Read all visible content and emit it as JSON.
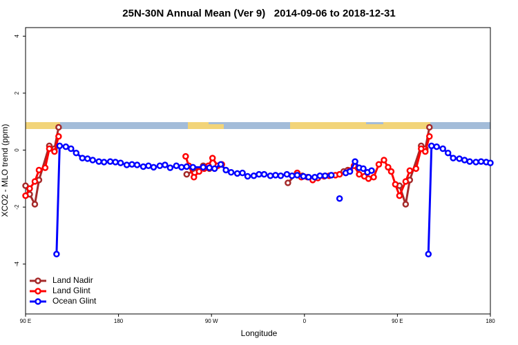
{
  "chart_data": {
    "type": "line",
    "title": "25N-30N Annual Mean (Ver 9)   2014-09-06 to 2018-12-31",
    "x_label": "Longitude",
    "y_label": "XCO2 - MLO trend (ppm)",
    "xlim": [
      90,
      540
    ],
    "xticks": [
      {
        "value": 90,
        "label": "90 E"
      },
      {
        "value": 180,
        "label": "180"
      },
      {
        "value": 270,
        "label": "90 W"
      },
      {
        "value": 360,
        "label": "0"
      },
      {
        "value": 450,
        "label": "90 E"
      },
      {
        "value": 540,
        "label": "180"
      }
    ],
    "ylim": [
      -5.75,
      4.3
    ],
    "yticks": [
      -4,
      -2,
      0,
      2,
      4
    ],
    "legend": "bottomleft",
    "series": [
      {
        "name": "Land Nadir",
        "color": "#a52a2a",
        "x": [
          90,
          94,
          99,
          103,
          113,
          118,
          122,
          180,
          246,
          262,
          268,
          300,
          344,
          353,
          358,
          380,
          398,
          402,
          420,
          452,
          458,
          462,
          473,
          477,
          481
        ],
        "values": [
          -1.25,
          -1.55,
          -1.9,
          -1.05,
          0.15,
          0.05,
          0.8,
          null,
          -0.85,
          -0.55,
          -0.65,
          null,
          -1.15,
          -0.8,
          -0.9,
          null,
          -0.75,
          -0.7,
          null,
          -1.25,
          -1.9,
          -1.05,
          0.15,
          0.05,
          0.8
        ]
      },
      {
        "name": "Land Glint",
        "color": "#ff0000",
        "x": [
          90,
          94,
          99,
          103,
          109,
          113,
          118,
          122,
          180,
          245,
          248,
          253,
          258,
          263,
          267,
          271,
          276,
          280,
          320,
          353,
          357,
          363,
          368,
          373,
          379,
          384,
          390,
          394,
          400,
          404,
          408,
          413,
          418,
          422,
          427,
          432,
          437,
          441,
          444,
          448,
          452,
          458,
          462,
          468,
          473,
          477,
          481
        ],
        "values": [
          -1.6,
          -1.35,
          -1.1,
          -0.7,
          -0.62,
          0.05,
          -0.05,
          0.48,
          null,
          -0.22,
          -0.55,
          -0.95,
          -0.75,
          -0.65,
          -0.55,
          -0.28,
          -0.55,
          -0.5,
          null,
          -0.8,
          -0.95,
          -0.95,
          -1.05,
          -0.98,
          -0.92,
          -0.9,
          -0.88,
          -0.85,
          -0.8,
          -0.72,
          -0.55,
          -0.85,
          -0.92,
          -1.0,
          -0.95,
          -0.5,
          -0.35,
          -0.6,
          -0.75,
          -1.2,
          -1.6,
          -1.1,
          -0.72,
          -0.65,
          0.05,
          -0.05,
          0.48
        ]
      },
      {
        "name": "Ocean Glint",
        "color": "#0000ff",
        "x": [
          120,
          123,
          129,
          134,
          139,
          145,
          150,
          155,
          161,
          166,
          172,
          177,
          182,
          188,
          193,
          198,
          204,
          209,
          214,
          220,
          225,
          230,
          236,
          241,
          246,
          252,
          262,
          268,
          273,
          279,
          284,
          289,
          295,
          300,
          305,
          311,
          316,
          321,
          327,
          332,
          337,
          343,
          348,
          353,
          359,
          364,
          370,
          375,
          380,
          386,
          391,
          394,
          397,
          400,
          404,
          409,
          413,
          417,
          421,
          425,
          450,
          480,
          483,
          488,
          494,
          499,
          504,
          510,
          515,
          520,
          526,
          531,
          536,
          540
        ],
        "values": [
          -3.65,
          0.15,
          0.12,
          0.05,
          -0.1,
          -0.28,
          -0.3,
          -0.35,
          -0.4,
          -0.42,
          -0.4,
          -0.42,
          -0.45,
          -0.52,
          -0.5,
          -0.52,
          -0.58,
          -0.55,
          -0.6,
          -0.55,
          -0.52,
          -0.62,
          -0.55,
          -0.6,
          -0.58,
          -0.6,
          -0.6,
          -0.62,
          -0.65,
          -0.5,
          -0.7,
          -0.78,
          -0.82,
          -0.8,
          -0.92,
          -0.9,
          -0.85,
          -0.85,
          -0.9,
          -0.88,
          -0.9,
          -0.85,
          -0.9,
          -0.88,
          -0.92,
          -0.95,
          -0.95,
          -0.9,
          -0.9,
          -0.88,
          null,
          -1.7,
          null,
          -0.8,
          -0.75,
          -0.4,
          -0.62,
          -0.65,
          -0.78,
          -0.72,
          null,
          -3.65,
          0.15,
          0.12,
          0.05,
          -0.1,
          -0.28,
          -0.3,
          -0.35,
          -0.4,
          -0.42,
          -0.4,
          -0.42,
          -0.45
        ]
      }
    ]
  }
}
